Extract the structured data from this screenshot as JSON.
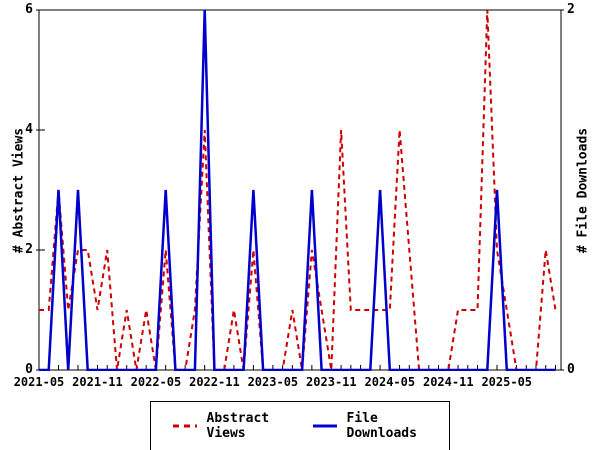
{
  "chart_data": {
    "type": "line",
    "x": [
      "2021-05",
      "2021-06",
      "2021-07",
      "2021-08",
      "2021-09",
      "2021-10",
      "2021-11",
      "2021-12",
      "2022-01",
      "2022-02",
      "2022-03",
      "2022-04",
      "2022-05",
      "2022-06",
      "2022-07",
      "2022-08",
      "2022-09",
      "2022-10",
      "2022-11",
      "2022-12",
      "2023-01",
      "2023-02",
      "2023-03",
      "2023-04",
      "2023-05",
      "2023-06",
      "2023-07",
      "2023-08",
      "2023-09",
      "2023-10",
      "2023-11",
      "2023-12",
      "2024-01",
      "2024-02",
      "2024-03",
      "2024-04",
      "2024-05",
      "2024-06",
      "2024-07",
      "2024-08",
      "2024-09",
      "2024-10",
      "2024-11",
      "2024-12",
      "2025-01",
      "2025-02",
      "2025-03",
      "2025-04",
      "2025-05",
      "2025-06",
      "2025-07",
      "2025-08",
      "2025-09",
      "2025-10"
    ],
    "x_tick_labels": [
      "2021-05",
      "2021-11",
      "2022-05",
      "2022-11",
      "2023-05",
      "2023-11",
      "2024-05",
      "2024-11",
      "2025-05"
    ],
    "series": [
      {
        "name": "Abstract Views",
        "axis": "left",
        "color": "#cc0000",
        "style": "dashed",
        "values": [
          1,
          1,
          3,
          1,
          2,
          2,
          1,
          2,
          0,
          1,
          0,
          1,
          0,
          2,
          0,
          0,
          1,
          4,
          0,
          0,
          1,
          0,
          2,
          0,
          0,
          0,
          1,
          0,
          2,
          1,
          0,
          4,
          1,
          1,
          1,
          1,
          1,
          4,
          2,
          0,
          0,
          0,
          0,
          1,
          1,
          1,
          6,
          2,
          1,
          0,
          0,
          0,
          2,
          1
        ]
      },
      {
        "name": "File Downloads",
        "axis": "right",
        "color": "#0000cc",
        "style": "solid",
        "values": [
          0,
          0,
          1,
          0,
          1,
          0,
          0,
          0,
          0,
          0,
          0,
          0,
          0,
          1,
          0,
          0,
          0,
          2,
          0,
          0,
          0,
          0,
          1,
          0,
          0,
          0,
          0,
          0,
          1,
          0,
          0,
          0,
          0,
          0,
          0,
          1,
          0,
          0,
          0,
          0,
          0,
          0,
          0,
          0,
          0,
          0,
          0,
          1,
          0,
          0,
          0,
          0,
          0,
          0
        ]
      }
    ],
    "left_axis": {
      "label": "# Abstract Views",
      "min": 0,
      "max": 6,
      "ticks": [
        0,
        2,
        4,
        6
      ]
    },
    "right_axis": {
      "label": "# File Downloads",
      "min": 0,
      "max": 2,
      "ticks": [
        0,
        2
      ]
    },
    "grid": false,
    "legend_position": "bottom-center"
  },
  "legend": {
    "abstract_views_label": "Abstract Views",
    "file_downloads_label": "File Downloads"
  },
  "colors": {
    "abstract_views": "#cc0000",
    "file_downloads": "#0000cc",
    "axis": "#000000",
    "background": "#ffffff"
  }
}
